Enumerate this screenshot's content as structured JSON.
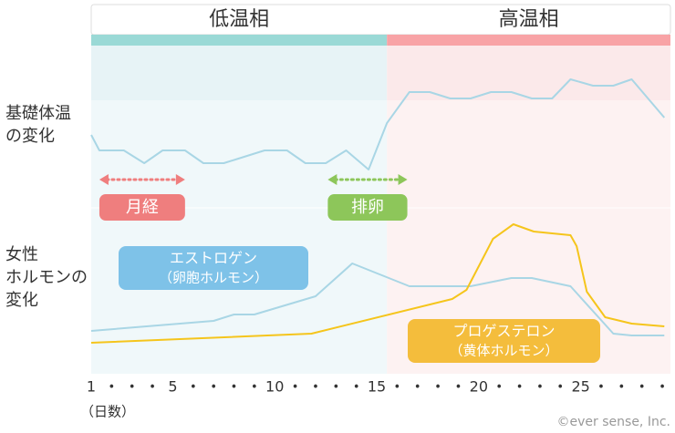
{
  "chart_data": [
    {
      "type": "line",
      "label_lines": [
        "基礎体温",
        "の変化"
      ],
      "xlim": [
        1,
        29.4
      ],
      "ylim": [
        0,
        178
      ],
      "series": [
        {
          "color": "#a9d6e5",
          "x": [
            1,
            1.4,
            2.6,
            3.6,
            4.5,
            5.6,
            6.5,
            7.5,
            8.5,
            9.5,
            10.6,
            11.5,
            12.5,
            13.5,
            14.6,
            15.5,
            16.6,
            17.6,
            18.6,
            19.6,
            20.6,
            21.6,
            22.6,
            23.6,
            24.5,
            25.6,
            26.6,
            27.5,
            29.1
          ],
          "values": [
            80,
            63,
            63,
            49,
            63,
            63,
            49,
            49,
            56,
            63,
            63,
            49,
            49,
            63,
            42,
            93,
            127,
            127,
            120,
            120,
            127,
            127,
            120,
            120,
            141,
            134,
            134,
            141,
            99
          ]
        }
      ]
    },
    {
      "type": "line",
      "label_lines": [
        "女性",
        "ホルモンの",
        "変化"
      ],
      "xlim": [
        1,
        29.4
      ],
      "ylim": [
        0,
        182
      ],
      "xlabel": "（日数）",
      "xticks": [
        1,
        {
          "value": 2,
          "label": "•"
        },
        {
          "value": 3,
          "label": "•"
        },
        {
          "value": 4,
          "label": "•"
        },
        5,
        {
          "value": 6,
          "label": "•"
        },
        {
          "value": 7,
          "label": "•"
        },
        {
          "value": 8,
          "label": "•"
        },
        {
          "value": 9,
          "label": "•"
        },
        10,
        {
          "value": 11,
          "label": "•"
        },
        {
          "value": 12,
          "label": "•"
        },
        {
          "value": 13,
          "label": "•"
        },
        {
          "value": 14,
          "label": "•"
        },
        15,
        {
          "value": 16,
          "label": "•"
        },
        {
          "value": 17,
          "label": "•"
        },
        {
          "value": 18,
          "label": "•"
        },
        {
          "value": 19,
          "label": "•"
        },
        20,
        {
          "value": 21,
          "label": "•"
        },
        {
          "value": 22,
          "label": "•"
        },
        {
          "value": 23,
          "label": "•"
        },
        {
          "value": 24,
          "label": "•"
        },
        25,
        {
          "value": 26,
          "label": "•"
        },
        {
          "value": 27,
          "label": "•"
        },
        {
          "value": 28,
          "label": "•"
        },
        {
          "value": 29,
          "label": "•"
        }
      ],
      "series": [
        {
          "name": "エストロゲン",
          "name_sub": "（卵胞ホルモン）",
          "color": "#a9d6e5",
          "label_color": "#7ec2e8",
          "x": [
            1,
            7,
            8,
            9,
            12,
            13.8,
            16.6,
            19.6,
            21.6,
            22.6,
            24.5,
            26.6,
            27.5,
            29.1
          ],
          "values": [
            47,
            58,
            65,
            65,
            85,
            121,
            96,
            96,
            105,
            105,
            96,
            44,
            42,
            42
          ]
        },
        {
          "name": "プロゲステロン",
          "name_sub": "（黄体ホルモン）",
          "color": "#f5c51c",
          "label_color": "#f4bd3c",
          "x": [
            1,
            11.8,
            18.7,
            19.4,
            20.7,
            21.7,
            22.7,
            24.5,
            24.8,
            25.3,
            26.2,
            27.5,
            29.1
          ],
          "values": [
            34,
            44,
            82,
            92,
            148,
            164,
            156,
            152,
            140,
            90,
            62,
            55,
            52
          ]
        }
      ]
    }
  ],
  "phases": [
    {
      "label": "低温相",
      "range": [
        1,
        15.5
      ],
      "color": "#9ad9d6"
    },
    {
      "label": "高温相",
      "range": [
        15.5,
        29.4
      ],
      "color": "#f8a3a6"
    }
  ],
  "annotations": [
    {
      "label": "月経",
      "range": [
        1.4,
        5.6
      ],
      "color": "#ef7e7e"
    },
    {
      "label": "排卵",
      "range": [
        12.6,
        16.5
      ],
      "color": "#8dc65a"
    }
  ],
  "copyright": "©ever sense, Inc."
}
